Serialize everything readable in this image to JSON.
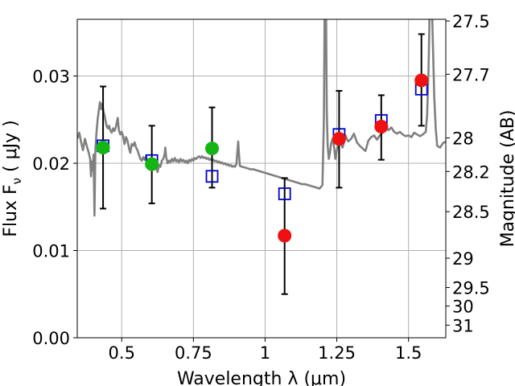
{
  "chart_data": {
    "type": "scatter",
    "xlabel": "Wavelength  λ (μm)",
    "ylabel": "Flux  F",
    "ylabel_subscript": "ν",
    "ylabel_unit": " ( μJy )",
    "y2label": "Magnitude (AB)",
    "xlim": [
      0.345,
      1.63
    ],
    "ylim": [
      0.0,
      0.0365
    ],
    "grid": true,
    "x_ticks": [
      {
        "value": 0.5,
        "label": "0.5"
      },
      {
        "value": 0.75,
        "label": "0.75"
      },
      {
        "value": 1.0,
        "label": "1"
      },
      {
        "value": 1.25,
        "label": "1.25"
      },
      {
        "value": 1.5,
        "label": "1.5"
      }
    ],
    "y_ticks": [
      {
        "value": 0.0,
        "label": "0.00"
      },
      {
        "value": 0.01,
        "label": "0.01"
      },
      {
        "value": 0.02,
        "label": "0.02"
      },
      {
        "value": 0.03,
        "label": "0.03"
      }
    ],
    "y2_ticks": [
      {
        "value": 27.5,
        "label": "27.5"
      },
      {
        "value": 27.7,
        "label": "27.7"
      },
      {
        "value": 28.0,
        "label": "28"
      },
      {
        "value": 28.2,
        "label": "28.2"
      },
      {
        "value": 28.5,
        "label": "28.5"
      },
      {
        "value": 29.0,
        "label": "29"
      },
      {
        "value": 29.5,
        "label": "29.5"
      },
      {
        "value": 30.0,
        "label": "30"
      },
      {
        "value": 31.0,
        "label": "31"
      }
    ],
    "series": [
      {
        "kind": "model-spectrum",
        "color": "#808080",
        "points": [
          [
            0.345,
            0.0228
          ],
          [
            0.352,
            0.0235
          ],
          [
            0.358,
            0.0225
          ],
          [
            0.365,
            0.0215
          ],
          [
            0.372,
            0.0228
          ],
          [
            0.378,
            0.022
          ],
          [
            0.385,
            0.0212
          ],
          [
            0.39,
            0.0205
          ],
          [
            0.393,
            0.0185
          ],
          [
            0.396,
            0.0202
          ],
          [
            0.399,
            0.0192
          ],
          [
            0.402,
            0.021
          ],
          [
            0.405,
            0.014
          ],
          [
            0.408,
            0.0215
          ],
          [
            0.412,
            0.0235
          ],
          [
            0.416,
            0.025
          ],
          [
            0.42,
            0.026
          ],
          [
            0.424,
            0.027
          ],
          [
            0.428,
            0.0262
          ],
          [
            0.432,
            0.0268
          ],
          [
            0.436,
            0.026
          ],
          [
            0.44,
            0.0255
          ],
          [
            0.444,
            0.0248
          ],
          [
            0.448,
            0.0242
          ],
          [
            0.452,
            0.024
          ],
          [
            0.456,
            0.0243
          ],
          [
            0.46,
            0.0238
          ],
          [
            0.465,
            0.0235
          ],
          [
            0.47,
            0.024
          ],
          [
            0.475,
            0.0237
          ],
          [
            0.48,
            0.0242
          ],
          [
            0.486,
            0.0252
          ],
          [
            0.49,
            0.0238
          ],
          [
            0.495,
            0.0233
          ],
          [
            0.5,
            0.0236
          ],
          [
            0.505,
            0.0231
          ],
          [
            0.51,
            0.0222
          ],
          [
            0.515,
            0.023
          ],
          [
            0.52,
            0.0226
          ],
          [
            0.525,
            0.0218
          ],
          [
            0.53,
            0.0212
          ],
          [
            0.535,
            0.0222
          ],
          [
            0.54,
            0.022
          ],
          [
            0.545,
            0.0224
          ],
          [
            0.55,
            0.0218
          ],
          [
            0.555,
            0.0215
          ],
          [
            0.56,
            0.021
          ],
          [
            0.565,
            0.0205
          ],
          [
            0.57,
            0.0203
          ],
          [
            0.575,
            0.0207
          ],
          [
            0.58,
            0.0204
          ],
          [
            0.585,
            0.0208
          ],
          [
            0.59,
            0.02
          ],
          [
            0.595,
            0.0202
          ],
          [
            0.6,
            0.0197
          ],
          [
            0.605,
            0.0202
          ],
          [
            0.61,
            0.0199
          ],
          [
            0.615,
            0.0203
          ],
          [
            0.62,
            0.0195
          ],
          [
            0.625,
            0.019
          ],
          [
            0.63,
            0.0198
          ],
          [
            0.635,
            0.0196
          ],
          [
            0.64,
            0.0203
          ],
          [
            0.645,
            0.0205
          ],
          [
            0.65,
            0.0211
          ],
          [
            0.652,
            0.0218
          ],
          [
            0.655,
            0.0207
          ],
          [
            0.66,
            0.02
          ],
          [
            0.665,
            0.0203
          ],
          [
            0.67,
            0.0201
          ],
          [
            0.675,
            0.0205
          ],
          [
            0.68,
            0.0202
          ],
          [
            0.685,
            0.0206
          ],
          [
            0.69,
            0.0202
          ],
          [
            0.695,
            0.0204
          ],
          [
            0.7,
            0.0201
          ],
          [
            0.705,
            0.0205
          ],
          [
            0.71,
            0.0202
          ],
          [
            0.715,
            0.0204
          ],
          [
            0.72,
            0.0201
          ],
          [
            0.725,
            0.0203
          ],
          [
            0.73,
            0.02
          ],
          [
            0.735,
            0.0204
          ],
          [
            0.74,
            0.0202
          ],
          [
            0.745,
            0.0205
          ],
          [
            0.75,
            0.0203
          ],
          [
            0.755,
            0.0206
          ],
          [
            0.76,
            0.0205
          ],
          [
            0.765,
            0.0207
          ],
          [
            0.77,
            0.0208
          ],
          [
            0.775,
            0.0206
          ],
          [
            0.78,
            0.0208
          ],
          [
            0.785,
            0.0206
          ],
          [
            0.79,
            0.0207
          ],
          [
            0.795,
            0.0205
          ],
          [
            0.8,
            0.0206
          ],
          [
            0.805,
            0.0204
          ],
          [
            0.81,
            0.0205
          ],
          [
            0.815,
            0.0203
          ],
          [
            0.82,
            0.0204
          ],
          [
            0.825,
            0.0202
          ],
          [
            0.83,
            0.0203
          ],
          [
            0.835,
            0.0201
          ],
          [
            0.84,
            0.0202
          ],
          [
            0.845,
            0.02
          ],
          [
            0.85,
            0.0201
          ],
          [
            0.855,
            0.0199
          ],
          [
            0.86,
            0.02
          ],
          [
            0.865,
            0.0198
          ],
          [
            0.87,
            0.0199
          ],
          [
            0.875,
            0.0197
          ],
          [
            0.88,
            0.0198
          ],
          [
            0.885,
            0.0196
          ],
          [
            0.89,
            0.0197
          ],
          [
            0.895,
            0.0196
          ],
          [
            0.9,
            0.0199
          ],
          [
            0.903,
            0.0212
          ],
          [
            0.906,
            0.0225
          ],
          [
            0.909,
            0.021
          ],
          [
            0.912,
            0.0197
          ],
          [
            0.92,
            0.0196
          ],
          [
            0.93,
            0.0195
          ],
          [
            0.94,
            0.0194
          ],
          [
            0.95,
            0.0193
          ],
          [
            0.96,
            0.0193
          ],
          [
            0.97,
            0.0192
          ],
          [
            0.98,
            0.0191
          ],
          [
            0.99,
            0.019
          ],
          [
            1.0,
            0.0189
          ],
          [
            1.01,
            0.0188
          ],
          [
            1.02,
            0.0187
          ],
          [
            1.03,
            0.0186
          ],
          [
            1.04,
            0.0185
          ],
          [
            1.05,
            0.0184
          ],
          [
            1.06,
            0.0183
          ],
          [
            1.07,
            0.0182
          ],
          [
            1.08,
            0.0181
          ],
          [
            1.09,
            0.018
          ],
          [
            1.1,
            0.0179
          ],
          [
            1.11,
            0.0178
          ],
          [
            1.12,
            0.0177
          ],
          [
            1.13,
            0.0176
          ],
          [
            1.14,
            0.0176
          ],
          [
            1.15,
            0.0175
          ],
          [
            1.16,
            0.0174
          ],
          [
            1.17,
            0.0173
          ],
          [
            1.18,
            0.0172
          ],
          [
            1.19,
            0.0171
          ],
          [
            1.2,
            0.0175
          ],
          [
            1.205,
            0.025
          ],
          [
            1.208,
            0.04
          ],
          [
            1.212,
            0.04
          ],
          [
            1.215,
            0.026
          ],
          [
            1.218,
            0.022
          ],
          [
            1.222,
            0.0205
          ],
          [
            1.226,
            0.0212
          ],
          [
            1.23,
            0.0222
          ],
          [
            1.235,
            0.0228
          ],
          [
            1.24,
            0.022
          ],
          [
            1.245,
            0.0205
          ],
          [
            1.25,
            0.0215
          ],
          [
            1.255,
            0.0222
          ],
          [
            1.26,
            0.0228
          ],
          [
            1.265,
            0.0222
          ],
          [
            1.27,
            0.0218
          ],
          [
            1.275,
            0.0224
          ],
          [
            1.28,
            0.0232
          ],
          [
            1.285,
            0.0228
          ],
          [
            1.29,
            0.0225
          ],
          [
            1.3,
            0.0228
          ],
          [
            1.31,
            0.0234
          ],
          [
            1.32,
            0.0224
          ],
          [
            1.33,
            0.022
          ],
          [
            1.34,
            0.0217
          ],
          [
            1.35,
            0.0214
          ],
          [
            1.36,
            0.0226
          ],
          [
            1.37,
            0.023
          ],
          [
            1.38,
            0.0232
          ],
          [
            1.39,
            0.0227
          ],
          [
            1.4,
            0.0232
          ],
          [
            1.41,
            0.0235
          ],
          [
            1.42,
            0.0242
          ],
          [
            1.43,
            0.0238
          ],
          [
            1.44,
            0.0241
          ],
          [
            1.45,
            0.0236
          ],
          [
            1.46,
            0.0234
          ],
          [
            1.47,
            0.0236
          ],
          [
            1.48,
            0.0233
          ],
          [
            1.49,
            0.0231
          ],
          [
            1.5,
            0.0232
          ],
          [
            1.51,
            0.023
          ],
          [
            1.52,
            0.0235
          ],
          [
            1.53,
            0.0233
          ],
          [
            1.54,
            0.0231
          ],
          [
            1.55,
            0.0233
          ],
          [
            1.56,
            0.0236
          ],
          [
            1.565,
            0.0255
          ],
          [
            1.57,
            0.031
          ],
          [
            1.575,
            0.04
          ],
          [
            1.58,
            0.04
          ],
          [
            1.59,
            0.0275
          ],
          [
            1.595,
            0.024
          ],
          [
            1.6,
            0.022
          ],
          [
            1.61,
            0.0218
          ],
          [
            1.62,
            0.0223
          ],
          [
            1.63,
            0.0225
          ]
        ]
      },
      {
        "kind": "model-band-flux",
        "marker": "open-square",
        "color": "#0000cc",
        "x": [
          0.435,
          0.605,
          0.815,
          1.068,
          1.258,
          1.405,
          1.545
        ],
        "y": [
          0.022,
          0.0203,
          0.0185,
          0.0165,
          0.0233,
          0.0249,
          0.0285
        ]
      },
      {
        "kind": "observed-optical",
        "marker": "filled-circle",
        "color": "#13b613",
        "x": [
          0.435,
          0.605,
          0.815
        ],
        "y": [
          0.0218,
          0.0199,
          0.0217
        ],
        "yerr_low": [
          0.0148,
          0.0154,
          0.0172
        ],
        "yerr_high": [
          0.0288,
          0.0243,
          0.0264
        ]
      },
      {
        "kind": "observed-infrared",
        "marker": "filled-circle",
        "color": "#ee1111",
        "x": [
          1.068,
          1.258,
          1.405,
          1.545
        ],
        "y": [
          0.0117,
          0.0228,
          0.0242,
          0.0295
        ],
        "yerr_low": [
          0.005,
          0.0172,
          0.0204,
          0.0243
        ],
        "yerr_high": [
          0.0183,
          0.0283,
          0.0278,
          0.0348
        ]
      }
    ]
  }
}
